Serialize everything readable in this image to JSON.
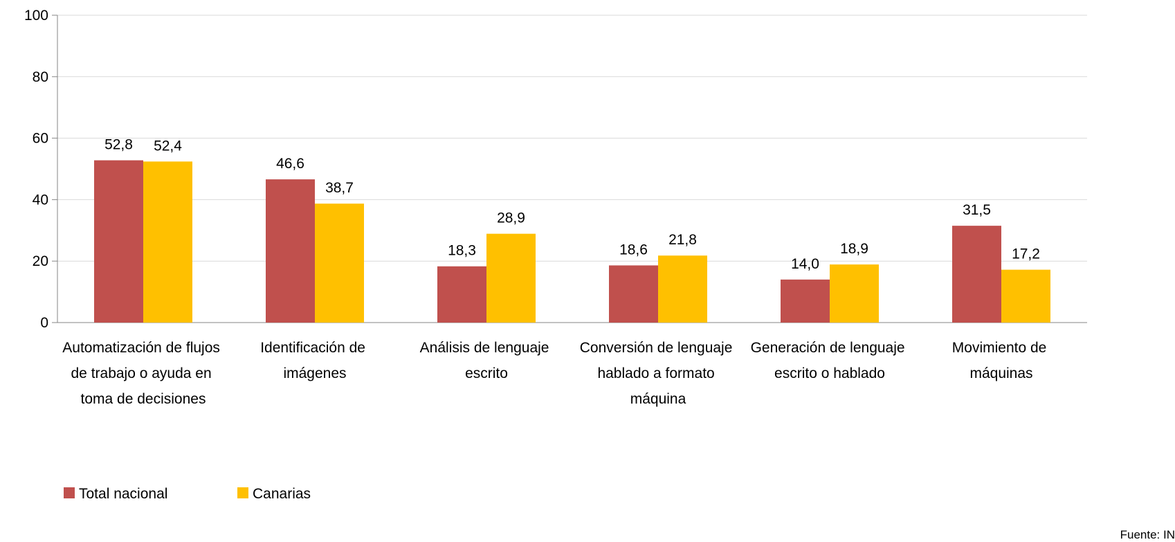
{
  "chart_data": {
    "type": "bar",
    "categories": [
      "Automatización de flujos de trabajo o ayuda en toma de decisiones",
      "Identificación de imágenes",
      "Análisis de lenguaje escrito",
      "Conversión de lenguaje hablado a formato máquina",
      "Generación de lenguaje escrito o hablado",
      "Movimiento de máquinas"
    ],
    "series": [
      {
        "name": "Total nacional",
        "color": "#c0504d",
        "values": [
          52.8,
          46.6,
          18.3,
          18.6,
          14.0,
          31.5
        ],
        "value_labels": [
          "52,8",
          "46,6",
          "18,3",
          "18,6",
          "14,0",
          "31,5"
        ]
      },
      {
        "name": "Canarias",
        "color": "#ffc000",
        "values": [
          52.4,
          38.7,
          28.9,
          21.8,
          18.9,
          17.2
        ],
        "value_labels": [
          "52,4",
          "38,7",
          "28,9",
          "21,8",
          "18,9",
          "17,2"
        ]
      }
    ],
    "ylim": [
      0,
      100
    ],
    "yticks": [
      0,
      20,
      40,
      60,
      80,
      100
    ],
    "grid": true,
    "legend": "bottom-left",
    "source": "Fuente: IN"
  }
}
